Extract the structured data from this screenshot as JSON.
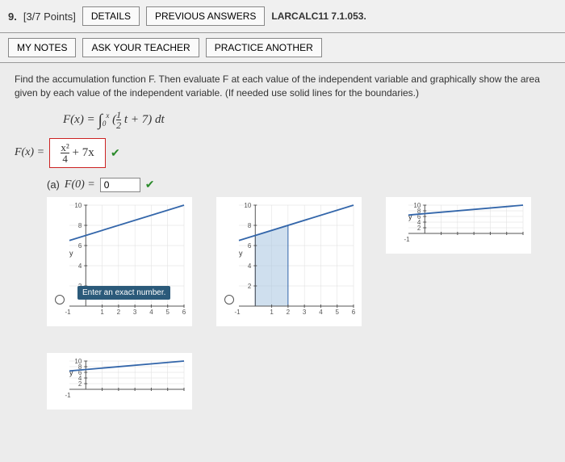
{
  "header": {
    "qnum": "9.",
    "points": "[3/7 Points]",
    "details_btn": "DETAILS",
    "prev_answers_btn": "PREVIOUS ANSWERS",
    "reference": "LARCALC11 7.1.053."
  },
  "row2": {
    "notes_btn": "MY NOTES",
    "ask_btn": "ASK YOUR TEACHER",
    "practice_btn": "PRACTICE ANOTHER"
  },
  "problem": {
    "text": "Find the accumulation function F. Then evaluate F at each value of the independent variable and graphically show the area given by each value of the independent variable. (If needed use solid lines for the boundaries.)",
    "formula_html": "F(x) = ∫₀ˣ (½t + 7) dt",
    "fx_label": "F(x) =",
    "fx_answer": "x²/4 + 7x",
    "part_a_label": "(a)",
    "part_a_fn": "F(0) =",
    "part_a_val": "0",
    "tooltip": "Enter an exact number."
  },
  "graph_style": {
    "width": 180,
    "height": 160,
    "xlim": [
      -1,
      6
    ],
    "ylim": [
      0,
      10
    ],
    "xticks": [
      1,
      2,
      3,
      4,
      5,
      6
    ],
    "yticks": [
      2,
      4,
      6,
      8,
      10
    ],
    "ylabel": "y",
    "axis_color": "#555",
    "grid_color": "#ddd",
    "line_color": "#3366aa",
    "fill_color": "#a8c4e0",
    "fill_opacity": "0.55"
  },
  "graphs": [
    {
      "line_p1": [
        -1,
        6.5
      ],
      "line_p2": [
        6,
        10
      ],
      "fill_to_x": 0,
      "has_tooltip": true
    },
    {
      "line_p1": [
        -1,
        6.5
      ],
      "line_p2": [
        6,
        10
      ],
      "fill_to_x": 2
    },
    {
      "line_p1": [
        -1,
        6.5
      ],
      "line_p2": [
        6,
        10
      ],
      "fill_to_x": 0,
      "partial": true
    },
    {
      "line_p1": [
        -1,
        6.5
      ],
      "line_p2": [
        6,
        10
      ],
      "fill_to_x": 0,
      "partial": true
    }
  ]
}
